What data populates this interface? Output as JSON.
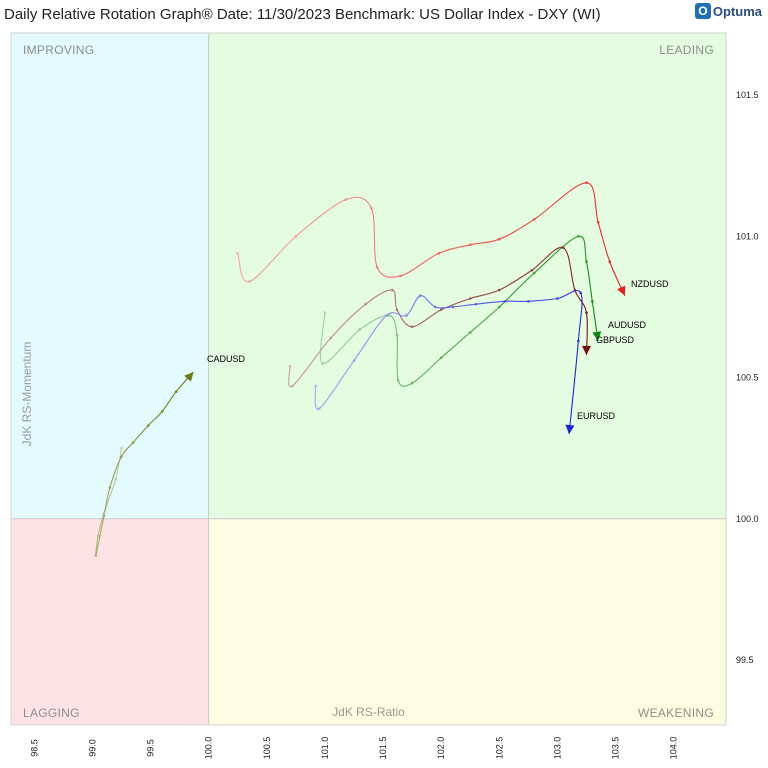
{
  "header": {
    "title": "Daily Relative Rotation Graph®    Date: 11/30/2023  Benchmark: US Dollar Index - DXY (WI)",
    "logo_text": "Optuma",
    "logo_icon": "optuma-logo-icon"
  },
  "chart_data": {
    "type": "scatter",
    "title": "Daily Relative Rotation Graph®",
    "date": "11/30/2023",
    "benchmark": "US Dollar Index - DXY (WI)",
    "xlabel": "JdK RS-Ratio",
    "ylabel": "JdK RS-Momentum",
    "xlim": [
      98.3,
      104.45
    ],
    "ylim": [
      99.27,
      101.72
    ],
    "x_ticks": [
      "98.5",
      "99.0",
      "99.5",
      "100.0",
      "100.5",
      "101.0",
      "101.5",
      "102.0",
      "102.5",
      "103.0",
      "103.5",
      "104.0"
    ],
    "y_ticks": [
      "99.5",
      "100.0",
      "100.5",
      "101.0",
      "101.5"
    ],
    "center": [
      100.0,
      100.0
    ],
    "quadrants": {
      "improving": {
        "label": "IMPROVING",
        "color": "#e3fbff"
      },
      "leading": {
        "label": "LEADING",
        "color": "#e4fce0"
      },
      "lagging": {
        "label": "LAGGING",
        "color": "#fde3e6"
      },
      "weakening": {
        "label": "WEAKENING",
        "color": "#fdfde2"
      }
    },
    "grid": false,
    "series": [
      {
        "name": "NZDUSD",
        "color": "#ee1c1c",
        "points": [
          [
            100.25,
            100.94
          ],
          [
            100.35,
            100.84
          ],
          [
            100.75,
            101.0
          ],
          [
            101.18,
            101.13
          ],
          [
            101.4,
            101.1
          ],
          [
            101.45,
            100.89
          ],
          [
            101.65,
            100.86
          ],
          [
            101.98,
            100.94
          ],
          [
            102.25,
            100.97
          ],
          [
            102.5,
            100.99
          ],
          [
            102.8,
            101.06
          ],
          [
            103.25,
            101.19
          ],
          [
            103.35,
            101.05
          ],
          [
            103.45,
            100.91
          ],
          [
            103.58,
            100.79
          ]
        ]
      },
      {
        "name": "AUDUSD",
        "color": "#0d8a0d",
        "points": [
          [
            101.0,
            100.73
          ],
          [
            100.98,
            100.55
          ],
          [
            101.3,
            100.67
          ],
          [
            101.55,
            100.72
          ],
          [
            101.62,
            100.65
          ],
          [
            101.63,
            100.49
          ],
          [
            101.75,
            100.48
          ],
          [
            102.0,
            100.57
          ],
          [
            102.25,
            100.66
          ],
          [
            102.5,
            100.75
          ],
          [
            102.8,
            100.87
          ],
          [
            103.18,
            101.0
          ],
          [
            103.25,
            100.91
          ],
          [
            103.3,
            100.77
          ],
          [
            103.35,
            100.63
          ]
        ]
      },
      {
        "name": "GBPUSD",
        "color": "#7a0e0e",
        "points": [
          [
            100.7,
            100.54
          ],
          [
            100.72,
            100.47
          ],
          [
            101.05,
            100.64
          ],
          [
            101.35,
            100.76
          ],
          [
            101.58,
            100.81
          ],
          [
            101.62,
            100.74
          ],
          [
            101.75,
            100.68
          ],
          [
            102.0,
            100.74
          ],
          [
            102.25,
            100.78
          ],
          [
            102.5,
            100.81
          ],
          [
            102.78,
            100.88
          ],
          [
            103.05,
            100.96
          ],
          [
            103.15,
            100.81
          ],
          [
            103.25,
            100.73
          ],
          [
            103.25,
            100.58
          ]
        ]
      },
      {
        "name": "EURUSD",
        "color": "#1a24e0",
        "points": [
          [
            100.92,
            100.47
          ],
          [
            100.95,
            100.39
          ],
          [
            101.25,
            100.56
          ],
          [
            101.53,
            100.72
          ],
          [
            101.7,
            100.72
          ],
          [
            101.82,
            100.79
          ],
          [
            101.95,
            100.75
          ],
          [
            102.1,
            100.75
          ],
          [
            102.3,
            100.76
          ],
          [
            102.55,
            100.77
          ],
          [
            102.75,
            100.77
          ],
          [
            103.0,
            100.78
          ],
          [
            103.2,
            100.8
          ],
          [
            103.18,
            100.63
          ],
          [
            103.1,
            100.3
          ]
        ]
      },
      {
        "name": "CADUSD",
        "color": "#6e7a0a",
        "points": [
          [
            99.25,
            100.25
          ],
          [
            99.2,
            100.14
          ],
          [
            99.1,
            100.02
          ],
          [
            99.05,
            99.94
          ],
          [
            99.03,
            99.87
          ],
          [
            99.1,
            100.01
          ],
          [
            99.15,
            100.11
          ],
          [
            99.25,
            100.22
          ],
          [
            99.35,
            100.27
          ],
          [
            99.48,
            100.33
          ],
          [
            99.6,
            100.38
          ],
          [
            99.72,
            100.45
          ],
          [
            99.87,
            100.52
          ]
        ]
      }
    ]
  }
}
